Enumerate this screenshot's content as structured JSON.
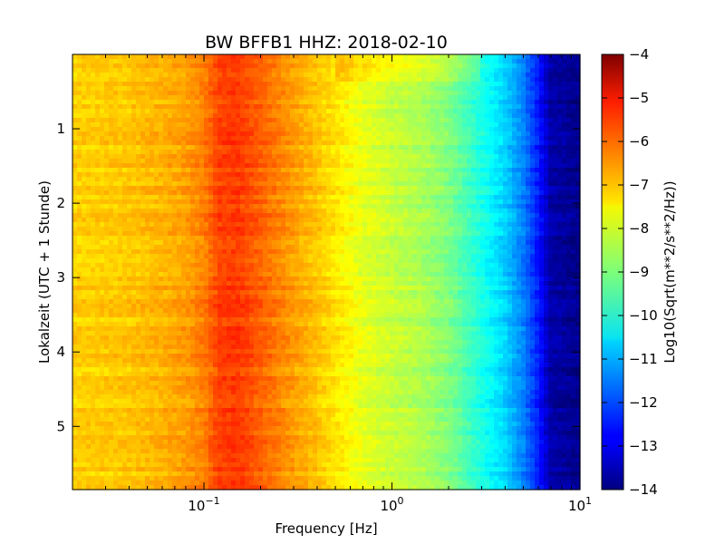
{
  "chart_data": {
    "type": "heatmap",
    "title": "BW BFFB1 HHZ: 2018-02-10",
    "xlabel": "Frequency [Hz]",
    "ylabel": "Lokalzeit (UTC + 1 Stunde)",
    "x_scale": "log",
    "xlim": [
      0.02,
      10
    ],
    "ylim": [
      5.85,
      0
    ],
    "x_ticks": [
      {
        "value": 0.1,
        "base": "10",
        "exp": "−1"
      },
      {
        "value": 1,
        "base": "10",
        "exp": "0"
      },
      {
        "value": 10,
        "base": "10",
        "exp": "1"
      }
    ],
    "y_ticks": [
      1,
      2,
      3,
      4,
      5
    ],
    "colorbar": {
      "label": "Log10(Sqrt(m**2/s**2/Hz))",
      "range": [
        -14,
        -4
      ],
      "ticks": [
        "−4",
        "−5",
        "−6",
        "−7",
        "−8",
        "−9",
        "−10",
        "−11",
        "−12",
        "−13",
        "−14"
      ],
      "colormap": "jet"
    },
    "spectrum_profile": {
      "frequency_hz": [
        0.02,
        0.04,
        0.06,
        0.08,
        0.1,
        0.12,
        0.15,
        0.2,
        0.3,
        0.5,
        0.7,
        1.0,
        1.5,
        2.0,
        3.0,
        4.0,
        5.0,
        6.0,
        7.0,
        10.0
      ],
      "log10_amplitude": [
        -7.3,
        -7.2,
        -7.0,
        -6.8,
        -6.5,
        -5.9,
        -5.8,
        -6.2,
        -6.8,
        -7.5,
        -8.0,
        -8.3,
        -8.6,
        -9.0,
        -10.0,
        -10.7,
        -11.5,
        -12.5,
        -13.6,
        -13.9
      ]
    }
  }
}
